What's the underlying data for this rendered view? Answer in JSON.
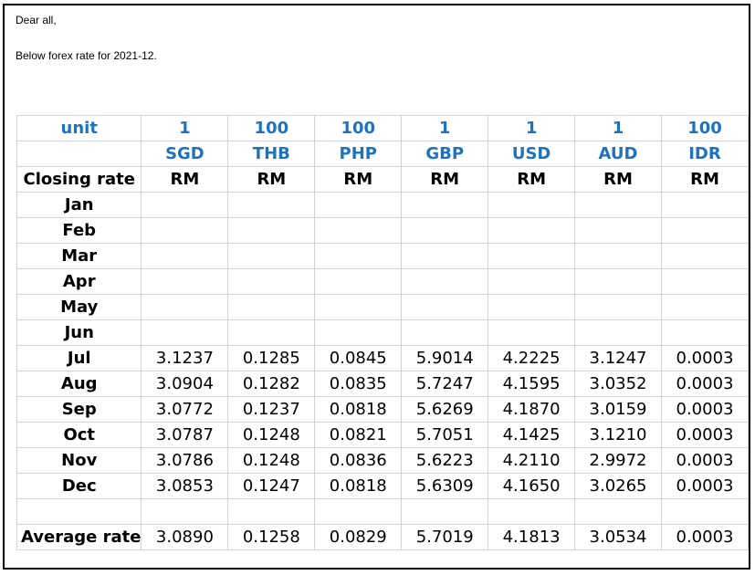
{
  "message": {
    "greeting": "Dear all,",
    "intro": "Below forex rate for 2021-12."
  },
  "table": {
    "unit_label": "unit",
    "units": [
      "1",
      "100",
      "100",
      "1",
      "1",
      "1",
      "100"
    ],
    "currencies": [
      "SGD",
      "THB",
      "PHP",
      "GBP",
      "USD",
      "AUD",
      "IDR"
    ],
    "closing_label": "Closing rate",
    "rm": [
      "RM",
      "RM",
      "RM",
      "RM",
      "RM",
      "RM",
      "RM"
    ],
    "months": [
      {
        "name": "Jan",
        "values": [
          "",
          "",
          "",
          "",
          "",
          "",
          ""
        ]
      },
      {
        "name": "Feb",
        "values": [
          "",
          "",
          "",
          "",
          "",
          "",
          ""
        ]
      },
      {
        "name": "Mar",
        "values": [
          "",
          "",
          "",
          "",
          "",
          "",
          ""
        ]
      },
      {
        "name": "Apr",
        "values": [
          "",
          "",
          "",
          "",
          "",
          "",
          ""
        ]
      },
      {
        "name": "May",
        "values": [
          "",
          "",
          "",
          "",
          "",
          "",
          ""
        ]
      },
      {
        "name": "Jun",
        "values": [
          "",
          "",
          "",
          "",
          "",
          "",
          ""
        ]
      },
      {
        "name": "Jul",
        "values": [
          "3.1237",
          "0.1285",
          "0.0845",
          "5.9014",
          "4.2225",
          "3.1247",
          "0.0003"
        ]
      },
      {
        "name": "Aug",
        "values": [
          "3.0904",
          "0.1282",
          "0.0835",
          "5.7247",
          "4.1595",
          "3.0352",
          "0.0003"
        ]
      },
      {
        "name": "Sep",
        "values": [
          "3.0772",
          "0.1237",
          "0.0818",
          "5.6269",
          "4.1870",
          "3.0159",
          "0.0003"
        ]
      },
      {
        "name": "Oct",
        "values": [
          "3.0787",
          "0.1248",
          "0.0821",
          "5.7051",
          "4.1425",
          "3.1210",
          "0.0003"
        ]
      },
      {
        "name": "Nov",
        "values": [
          "3.0786",
          "0.1248",
          "0.0836",
          "5.6223",
          "4.2110",
          "2.9972",
          "0.0003"
        ]
      },
      {
        "name": "Dec",
        "values": [
          "3.0853",
          "0.1247",
          "0.0818",
          "5.6309",
          "4.1650",
          "3.0265",
          "0.0003"
        ]
      }
    ],
    "average_label": "Average rate",
    "average": [
      "3.0890",
      "0.1258",
      "0.0829",
      "5.7019",
      "4.1813",
      "3.0534",
      "0.0003"
    ]
  },
  "colors": {
    "header_text": "#1e73be",
    "grid": "#d4d4d4",
    "frame": "#000000"
  }
}
